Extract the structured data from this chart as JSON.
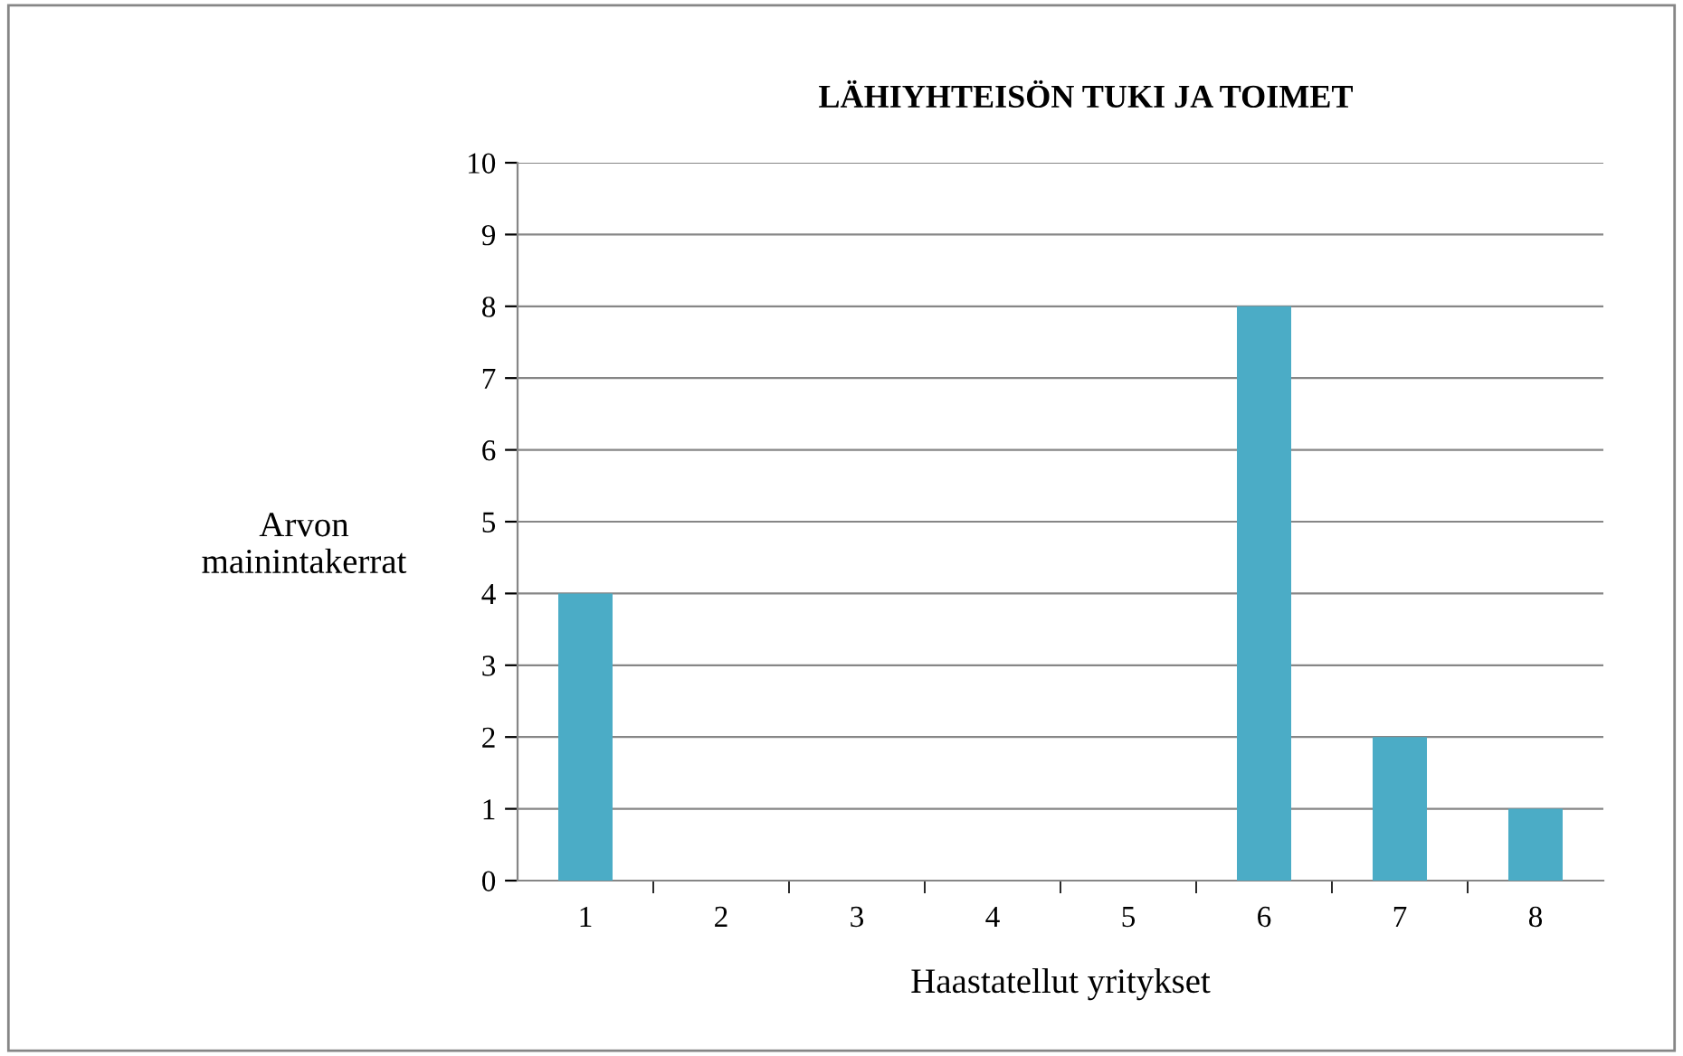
{
  "chart_data": {
    "type": "bar",
    "title": "LÄHIYHTEISÖN TUKI JA TOIMET",
    "xlabel": "Haastatellut yritykset",
    "ylabel": "Arvon\nmainintakerrat",
    "categories": [
      "1",
      "2",
      "3",
      "4",
      "5",
      "6",
      "7",
      "8"
    ],
    "values": [
      4,
      0,
      0,
      0,
      0,
      8,
      2,
      1
    ],
    "color": "#4bacc6",
    "ylim": [
      0,
      10
    ],
    "yticks": [
      0,
      1,
      2,
      3,
      4,
      5,
      6,
      7,
      8,
      9,
      10
    ],
    "grid": "y",
    "legend": false
  }
}
